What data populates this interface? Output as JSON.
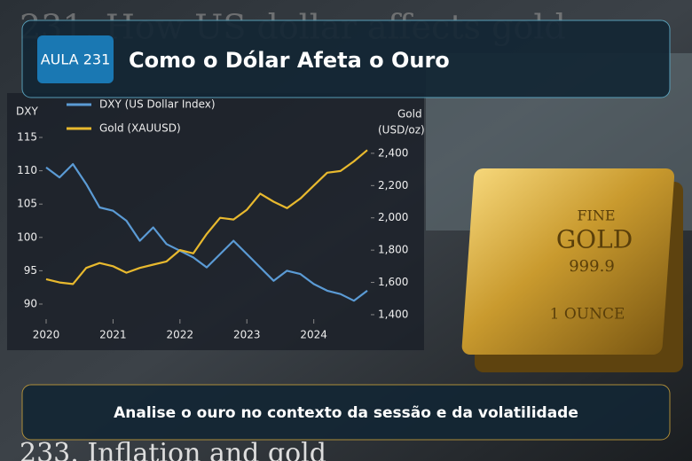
{
  "background_top_text": "231. How US dollar affects gold",
  "badge": "AULA 231",
  "title": "Como o Dólar Afeta o Ouro",
  "bar_label": {
    "line1": "FINE",
    "line2": "GOLD",
    "line3": "999.9",
    "line4": "1 OUNCE"
  },
  "caption": "Analise o ouro no contexto da sessão e da volatilidade",
  "background_bottom_text": "233. Inflation and gold",
  "chart_data": {
    "type": "line",
    "y_label": "DXY",
    "y2_label": [
      "Gold",
      "(USD/oz)"
    ],
    "x": [
      2020.0,
      2020.2,
      2020.4,
      2020.6,
      2020.8,
      2021.0,
      2021.2,
      2021.4,
      2021.6,
      2021.8,
      2022.0,
      2022.2,
      2022.4,
      2022.6,
      2022.8,
      2023.0,
      2023.2,
      2023.4,
      2023.6,
      2023.8,
      2024.0,
      2024.2,
      2024.4,
      2024.6,
      2024.8
    ],
    "series": [
      {
        "name": "DXY (US Dollar Index)",
        "color": "#5b9bd5",
        "values": [
          110.5,
          109,
          111,
          108,
          104.5,
          104,
          102.5,
          99.5,
          101.5,
          99,
          98,
          97,
          95.5,
          97.5,
          99.5,
          97.5,
          95.5,
          93.5,
          95,
          94.5,
          93,
          92,
          91.5,
          90.5,
          92
        ]
      },
      {
        "name": "Gold (XAUUSD)",
        "color": "#e8b92e",
        "axis": "y2",
        "values": [
          1620,
          1600,
          1590,
          1690,
          1720,
          1700,
          1660,
          1690,
          1710,
          1730,
          1800,
          1780,
          1900,
          2000,
          1990,
          2050,
          2150,
          2100,
          2060,
          2120,
          2200,
          2280,
          2290,
          2350,
          2420
        ]
      }
    ],
    "xlim": [
      2020,
      2024.8
    ],
    "xticks": [
      2020,
      2021,
      2022,
      2023,
      2024
    ],
    "ylim": [
      89,
      116
    ],
    "yticks": [
      90,
      95,
      100,
      105,
      110,
      115
    ],
    "y2lim": [
      1380,
      2460
    ],
    "y2ticks": [
      {
        "value": 1400,
        "label": "1,400"
      },
      {
        "value": 1600,
        "label": "1,600"
      },
      {
        "value": 1800,
        "label": "1,800"
      },
      {
        "value": 2000,
        "label": "2,000"
      },
      {
        "value": 2200,
        "label": "2,200"
      },
      {
        "value": 2400,
        "label": "2,400"
      }
    ],
    "legend": "top-left"
  }
}
